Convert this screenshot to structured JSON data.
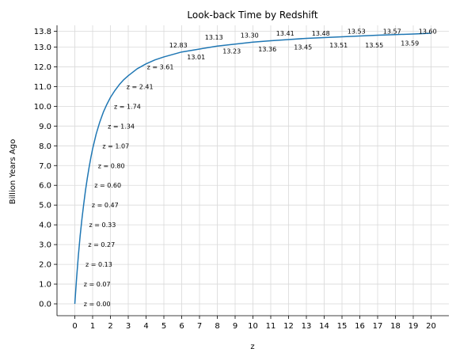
{
  "chart_data": {
    "type": "line",
    "title": "Look-back Time by Redshift",
    "xlabel": "z",
    "ylabel": "Billion Years Ago",
    "xlim": [
      -1,
      21
    ],
    "ylim": [
      -0.6,
      14.1
    ],
    "grid": true,
    "x_ticks": [
      0,
      1,
      2,
      3,
      4,
      5,
      6,
      7,
      8,
      9,
      10,
      11,
      12,
      13,
      14,
      15,
      16,
      17,
      18,
      19,
      20
    ],
    "y_ticks": [
      0.0,
      1.0,
      2.0,
      3.0,
      4.0,
      5.0,
      6.0,
      7.0,
      8.0,
      9.0,
      10.0,
      11.0,
      12.0,
      13.0,
      13.8
    ],
    "line_color": "#1f77b4",
    "series": [
      {
        "x": [
          0,
          0.1,
          0.2,
          0.3,
          0.4,
          0.5,
          0.6,
          0.7,
          0.8,
          0.9,
          1.0,
          1.2,
          1.4,
          1.6,
          1.8,
          2.0,
          2.25,
          2.5,
          2.75,
          3.0,
          3.5,
          4.0,
          4.5,
          5.0,
          6.0,
          7.0,
          8.0,
          9.0,
          10.0,
          11.0,
          12.0,
          13.0,
          14.0,
          15.0,
          16.0,
          17.0,
          18.0,
          19.0,
          20.0
        ],
        "y": [
          0.0,
          1.3,
          2.45,
          3.45,
          4.3,
          5.05,
          5.75,
          6.35,
          6.9,
          7.4,
          7.85,
          8.6,
          9.2,
          9.7,
          10.1,
          10.45,
          10.8,
          11.1,
          11.35,
          11.55,
          11.9,
          12.15,
          12.35,
          12.5,
          12.75,
          12.9,
          13.05,
          13.15,
          13.25,
          13.32,
          13.38,
          13.44,
          13.48,
          13.52,
          13.56,
          13.6,
          13.63,
          13.66,
          13.7
        ]
      }
    ],
    "annotations": [
      {
        "text": "z = 0.00",
        "x": 0.5,
        "y": 0.0
      },
      {
        "text": "z = 0.07",
        "x": 0.5,
        "y": 1.0
      },
      {
        "text": "z = 0.13",
        "x": 0.6,
        "y": 2.0
      },
      {
        "text": "z = 0.27",
        "x": 0.75,
        "y": 3.0
      },
      {
        "text": "z = 0.33",
        "x": 0.8,
        "y": 4.0
      },
      {
        "text": "z = 0.47",
        "x": 0.95,
        "y": 5.0
      },
      {
        "text": "z = 0.60",
        "x": 1.1,
        "y": 6.0
      },
      {
        "text": "z = 0.80",
        "x": 1.3,
        "y": 7.0
      },
      {
        "text": "z = 1.07",
        "x": 1.55,
        "y": 8.0
      },
      {
        "text": "z = 1.34",
        "x": 1.85,
        "y": 9.0
      },
      {
        "text": "z = 1.74",
        "x": 2.2,
        "y": 10.0
      },
      {
        "text": "z = 2.41",
        "x": 2.9,
        "y": 11.0
      },
      {
        "text": "z = 3.61",
        "x": 4.05,
        "y": 12.0
      },
      {
        "text": "12.83",
        "x": 5.3,
        "y": 13.1
      },
      {
        "text": "13.01",
        "x": 6.3,
        "y": 12.5
      },
      {
        "text": "13.13",
        "x": 7.3,
        "y": 13.5
      },
      {
        "text": "13.23",
        "x": 8.3,
        "y": 12.8
      },
      {
        "text": "13.30",
        "x": 9.3,
        "y": 13.6
      },
      {
        "text": "13.36",
        "x": 10.3,
        "y": 12.9
      },
      {
        "text": "13.41",
        "x": 11.3,
        "y": 13.7
      },
      {
        "text": "13.45",
        "x": 12.3,
        "y": 13.0
      },
      {
        "text": "13.48",
        "x": 13.3,
        "y": 13.7
      },
      {
        "text": "13.51",
        "x": 14.3,
        "y": 13.1
      },
      {
        "text": "13.53",
        "x": 15.3,
        "y": 13.8
      },
      {
        "text": "13.55",
        "x": 16.3,
        "y": 13.1
      },
      {
        "text": "13.57",
        "x": 17.3,
        "y": 13.8
      },
      {
        "text": "13.59",
        "x": 18.3,
        "y": 13.2
      },
      {
        "text": "13.60",
        "x": 19.3,
        "y": 13.8
      }
    ]
  }
}
